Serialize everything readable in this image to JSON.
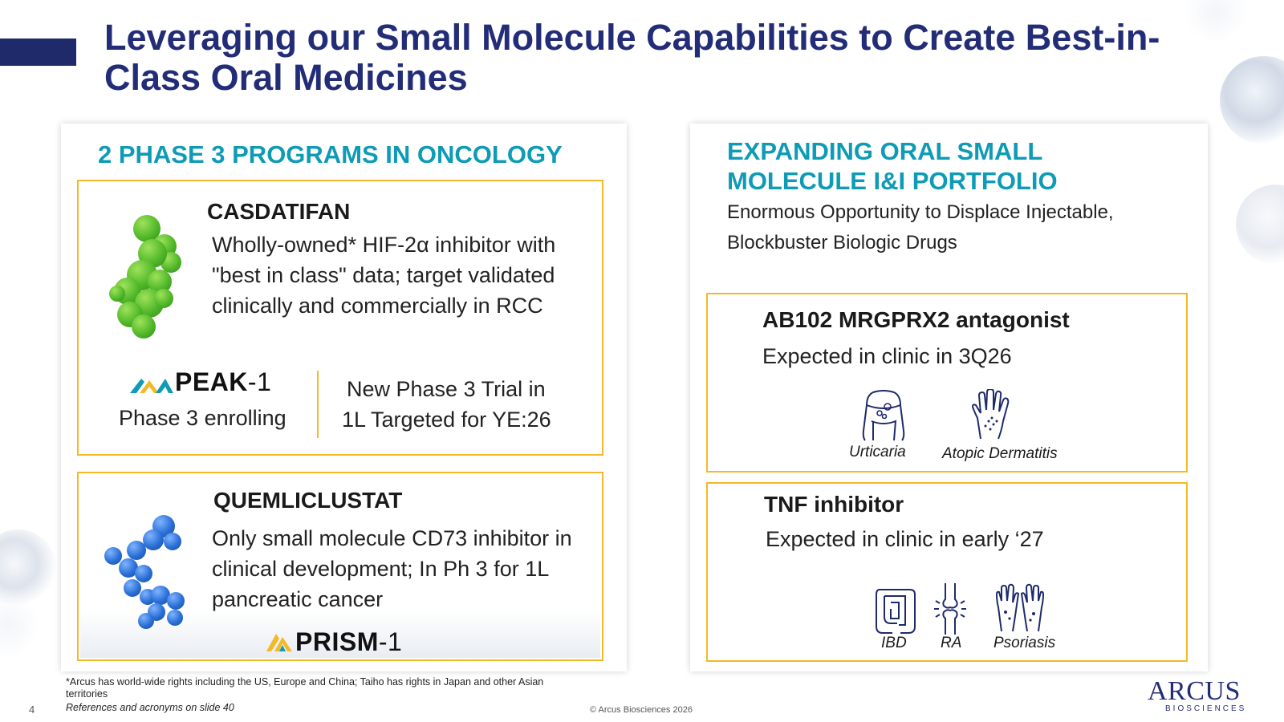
{
  "title": "Leveraging our Small Molecule Capabilities to Create Best-in-Class Oral Medicines",
  "left": {
    "heading": "2 PHASE 3 PROGRAMS IN ONCOLOGY",
    "casdatifan": {
      "name": "CASDATIFAN",
      "description": "Wholly-owned* HIF-2α inhibitor with \"best in class\" data; target validated clinically and commercially in RCC",
      "trial_logo": "PEAK-1",
      "trial_logo_word": "PEAK",
      "trial_logo_num": "-1",
      "trial_status": "Phase 3 enrolling",
      "new_trial_line1": "New Phase 3 Trial in",
      "new_trial_line2": "1L Targeted for YE:26"
    },
    "quemliclustat": {
      "name": "QUEMLICLUSTAT",
      "description": "Only small molecule CD73 inhibitor in clinical development; In Ph 3 for 1L pancreatic cancer",
      "trial_logo_word": "PRISM",
      "trial_logo_num": "-1"
    }
  },
  "right": {
    "heading_line1": "EXPANDING ORAL SMALL",
    "heading_line2": "MOLECULE I&I PORTFOLIO",
    "subheading_line1": "Enormous Opportunity to Displace Injectable,",
    "subheading_line2": "Blockbuster Biologic Drugs",
    "ab102": {
      "name": "AB102 MRGPRX2 antagonist",
      "status": "Expected in clinic in 3Q26",
      "indications": [
        "Urticaria",
        "Atopic Dermatitis"
      ]
    },
    "tnf": {
      "name": "TNF inhibitor",
      "status": "Expected in clinic in early ‘27",
      "indications": [
        "IBD",
        "RA",
        "Psoriasis"
      ]
    }
  },
  "footer": {
    "footnote": "*Arcus has world-wide rights including the US, Europe and China; Taiho has rights in Japan and other Asian territories",
    "references": "References and acronyms on slide 40",
    "page_number": "4",
    "copyright": "© Arcus Biosciences 2026",
    "logo_main": "ARCUS",
    "logo_sub": "BIOSCIENCES"
  },
  "colors": {
    "title": "#232d77",
    "heading": "#0d9bb5",
    "box_border": "#f3b929"
  }
}
